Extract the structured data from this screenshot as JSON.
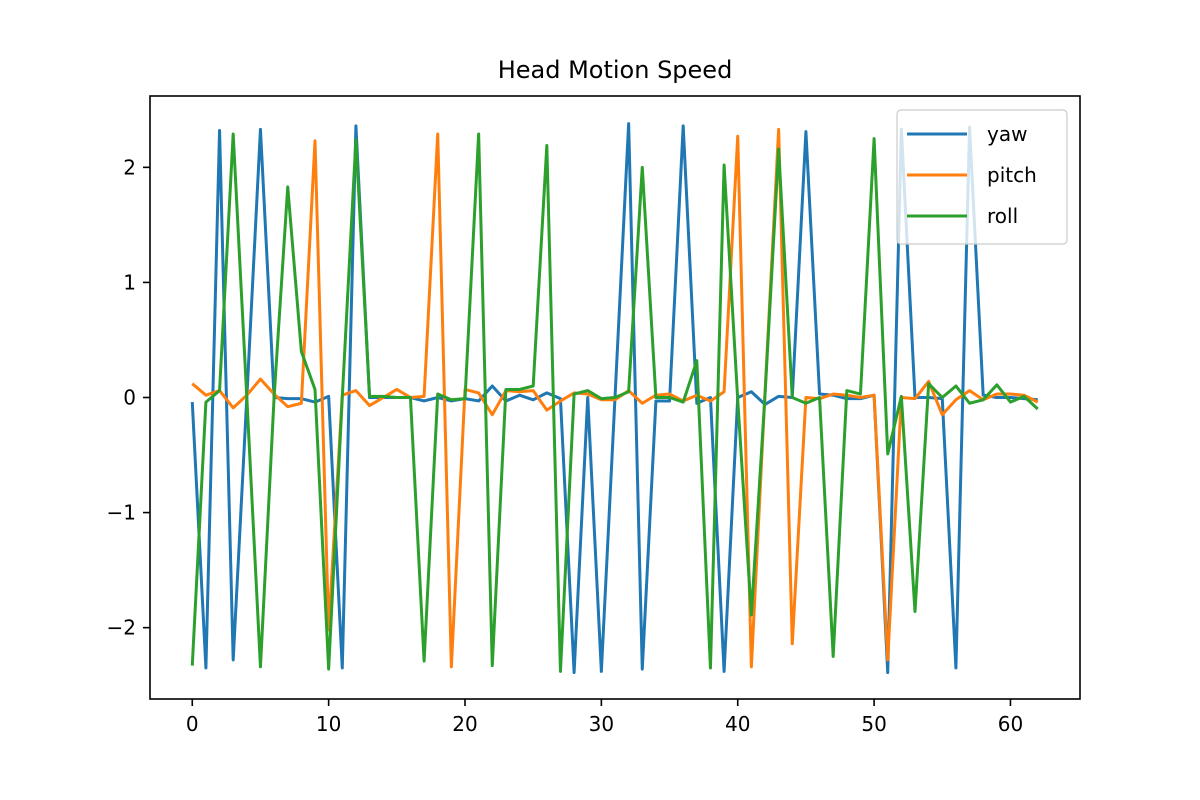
{
  "chart_data": {
    "type": "line",
    "title": "Head Motion Speed",
    "xlabel": "",
    "ylabel": "",
    "xlim": [
      -3.1,
      65.1
    ],
    "ylim": [
      -2.62,
      2.62
    ],
    "x_ticks": [
      0,
      10,
      20,
      30,
      40,
      50,
      60
    ],
    "y_ticks": [
      -2,
      -1,
      0,
      1,
      2
    ],
    "y_tick_labels": [
      "−2",
      "−1",
      "0",
      "1",
      "2"
    ],
    "grid": false,
    "legend_position": "top-right",
    "x": [
      0,
      1,
      2,
      3,
      4,
      5,
      6,
      7,
      8,
      9,
      10,
      11,
      12,
      13,
      14,
      15,
      16,
      17,
      18,
      19,
      20,
      21,
      22,
      23,
      24,
      25,
      26,
      27,
      28,
      29,
      30,
      31,
      32,
      33,
      34,
      35,
      36,
      37,
      38,
      39,
      40,
      41,
      42,
      43,
      44,
      45,
      46,
      47,
      48,
      49,
      50,
      51,
      52,
      53,
      54,
      55,
      56,
      57,
      58,
      59,
      60,
      61,
      62
    ],
    "series": [
      {
        "name": "yaw",
        "color": "#1f77b4",
        "values": [
          -0.04,
          -2.35,
          2.32,
          -2.28,
          0.0,
          2.33,
          0.0,
          -0.01,
          -0.01,
          -0.04,
          0.01,
          -2.35,
          2.36,
          0.0,
          0.0,
          0.0,
          0.0,
          -0.03,
          0.0,
          -0.03,
          -0.01,
          -0.03,
          0.1,
          -0.03,
          0.02,
          -0.02,
          0.04,
          -0.01,
          -2.39,
          0.0,
          -2.38,
          0.0,
          2.38,
          -2.36,
          -0.03,
          -0.03,
          2.36,
          -0.05,
          0.0,
          -2.38,
          0.0,
          0.05,
          -0.06,
          0.01,
          0.0,
          2.31,
          0.03,
          0.02,
          -0.01,
          -0.01,
          0.02,
          -2.39,
          2.33,
          0.0,
          0.0,
          -0.01,
          -2.35,
          2.35,
          0.02,
          0.0,
          0.0,
          -0.01,
          -0.02
        ]
      },
      {
        "name": "pitch",
        "color": "#ff7f0e",
        "values": [
          0.12,
          0.02,
          0.06,
          -0.09,
          0.02,
          0.16,
          0.03,
          -0.08,
          -0.05,
          2.23,
          -2.02,
          0.02,
          0.06,
          -0.07,
          0.0,
          0.07,
          0.0,
          0.01,
          2.29,
          -2.34,
          0.07,
          0.04,
          -0.15,
          0.06,
          0.05,
          0.06,
          -0.11,
          -0.03,
          0.04,
          0.03,
          -0.02,
          -0.02,
          0.06,
          -0.05,
          0.02,
          0.03,
          -0.03,
          0.02,
          -0.03,
          0.05,
          2.27,
          -2.34,
          0.04,
          2.33,
          -2.14,
          0.0,
          -0.01,
          0.03,
          0.02,
          0.0,
          0.02,
          -2.28,
          0.0,
          -0.01,
          0.14,
          -0.15,
          -0.02,
          0.06,
          -0.02,
          0.03,
          0.03,
          0.02,
          -0.04
        ]
      },
      {
        "name": "roll",
        "color": "#2ca02c",
        "values": [
          -2.33,
          -0.04,
          0.06,
          2.29,
          0.0,
          -2.34,
          0.0,
          1.83,
          0.4,
          0.07,
          -2.36,
          0.0,
          2.24,
          0.01,
          0.01,
          0.0,
          0.0,
          -2.29,
          0.03,
          -0.02,
          -0.01,
          2.29,
          -2.33,
          0.07,
          0.07,
          0.1,
          2.19,
          -2.38,
          0.03,
          0.06,
          -0.01,
          0.0,
          0.05,
          2.0,
          0.0,
          0.0,
          -0.04,
          0.32,
          -2.35,
          2.02,
          -0.02,
          -1.89,
          0.02,
          2.16,
          0.0,
          -0.05,
          0.0,
          -2.25,
          0.06,
          0.03,
          2.25,
          -0.49,
          0.01,
          -1.86,
          0.12,
          0.0,
          0.1,
          -0.05,
          -0.02,
          0.11,
          -0.04,
          0.01,
          -0.1
        ]
      }
    ]
  }
}
